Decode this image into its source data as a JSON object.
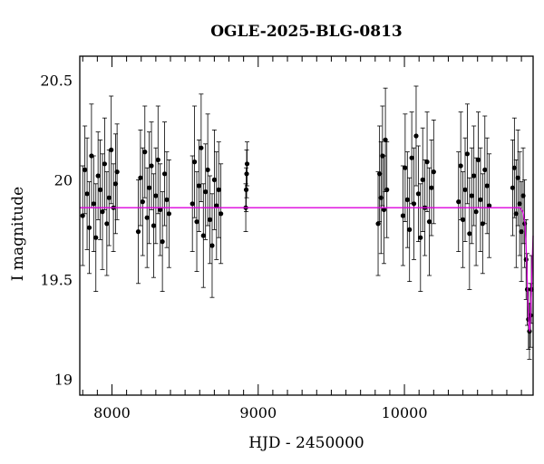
{
  "chart_data": {
    "type": "scatter",
    "title": "OGLE-2025-BLG-0813",
    "xlabel": "HJD - 2450000",
    "ylabel": "I magnitude",
    "xlim": [
      7780,
      10880
    ],
    "ylim": [
      20.62,
      18.92
    ],
    "y_inverted": true,
    "x_ticks": [
      8000,
      9000,
      10000
    ],
    "x_tick_labels": [
      "8000",
      "9000",
      "10000"
    ],
    "y_ticks": [
      19,
      19.5,
      20,
      20.5
    ],
    "y_tick_labels": [
      "19",
      "19.5",
      "20",
      "20.5"
    ],
    "grid": false,
    "colors": {
      "points": "#000000",
      "model": "#dd00dd"
    },
    "series": [
      {
        "type": "points-with-errorbars",
        "points": [
          {
            "x": 7800,
            "y": 19.82,
            "err": 0.25
          },
          {
            "x": 7815,
            "y": 20.05,
            "err": 0.22
          },
          {
            "x": 7830,
            "y": 19.93,
            "err": 0.28
          },
          {
            "x": 7845,
            "y": 19.76,
            "err": 0.23
          },
          {
            "x": 7860,
            "y": 20.12,
            "err": 0.26
          },
          {
            "x": 7875,
            "y": 19.88,
            "err": 0.24
          },
          {
            "x": 7890,
            "y": 19.71,
            "err": 0.27
          },
          {
            "x": 7905,
            "y": 20.02,
            "err": 0.22
          },
          {
            "x": 7920,
            "y": 19.95,
            "err": 0.25
          },
          {
            "x": 7935,
            "y": 19.84,
            "err": 0.29
          },
          {
            "x": 7950,
            "y": 20.08,
            "err": 0.23
          },
          {
            "x": 7965,
            "y": 19.78,
            "err": 0.26
          },
          {
            "x": 7980,
            "y": 19.91,
            "err": 0.24
          },
          {
            "x": 7995,
            "y": 20.15,
            "err": 0.27
          },
          {
            "x": 8010,
            "y": 19.86,
            "err": 0.22
          },
          {
            "x": 8025,
            "y": 19.98,
            "err": 0.25
          },
          {
            "x": 8035,
            "y": 20.04,
            "err": 0.24
          },
          {
            "x": 8180,
            "y": 19.74,
            "err": 0.26
          },
          {
            "x": 8195,
            "y": 20.01,
            "err": 0.24
          },
          {
            "x": 8210,
            "y": 19.89,
            "err": 0.27
          },
          {
            "x": 8225,
            "y": 20.14,
            "err": 0.23
          },
          {
            "x": 8240,
            "y": 19.81,
            "err": 0.25
          },
          {
            "x": 8255,
            "y": 19.96,
            "err": 0.28
          },
          {
            "x": 8270,
            "y": 20.07,
            "err": 0.22
          },
          {
            "x": 8285,
            "y": 19.77,
            "err": 0.26
          },
          {
            "x": 8300,
            "y": 19.92,
            "err": 0.24
          },
          {
            "x": 8315,
            "y": 20.1,
            "err": 0.27
          },
          {
            "x": 8330,
            "y": 19.85,
            "err": 0.23
          },
          {
            "x": 8345,
            "y": 19.69,
            "err": 0.25
          },
          {
            "x": 8360,
            "y": 20.03,
            "err": 0.26
          },
          {
            "x": 8375,
            "y": 19.9,
            "err": 0.24
          },
          {
            "x": 8390,
            "y": 19.83,
            "err": 0.27
          },
          {
            "x": 8550,
            "y": 19.88,
            "err": 0.24
          },
          {
            "x": 8565,
            "y": 20.09,
            "err": 0.28
          },
          {
            "x": 8580,
            "y": 19.79,
            "err": 0.25
          },
          {
            "x": 8595,
            "y": 19.97,
            "err": 0.23
          },
          {
            "x": 8610,
            "y": 20.16,
            "err": 0.27
          },
          {
            "x": 8625,
            "y": 19.72,
            "err": 0.26
          },
          {
            "x": 8640,
            "y": 19.94,
            "err": 0.24
          },
          {
            "x": 8655,
            "y": 20.05,
            "err": 0.28
          },
          {
            "x": 8670,
            "y": 19.8,
            "err": 0.22
          },
          {
            "x": 8685,
            "y": 19.67,
            "err": 0.26
          },
          {
            "x": 8700,
            "y": 20.0,
            "err": 0.25
          },
          {
            "x": 8715,
            "y": 19.87,
            "err": 0.27
          },
          {
            "x": 8730,
            "y": 19.95,
            "err": 0.24
          },
          {
            "x": 8745,
            "y": 19.83,
            "err": 0.25
          },
          {
            "x": 8915,
            "y": 19.86,
            "err": 0.12
          },
          {
            "x": 8918,
            "y": 19.95,
            "err": 0.11
          },
          {
            "x": 8921,
            "y": 20.03,
            "err": 0.12
          },
          {
            "x": 8924,
            "y": 20.08,
            "err": 0.11
          },
          {
            "x": 9820,
            "y": 19.78,
            "err": 0.26
          },
          {
            "x": 9830,
            "y": 20.03,
            "err": 0.24
          },
          {
            "x": 9840,
            "y": 19.91,
            "err": 0.28
          },
          {
            "x": 9850,
            "y": 20.12,
            "err": 0.25
          },
          {
            "x": 9860,
            "y": 19.85,
            "err": 0.27
          },
          {
            "x": 9870,
            "y": 20.2,
            "err": 0.26
          },
          {
            "x": 9880,
            "y": 19.95,
            "err": 0.24
          },
          {
            "x": 9990,
            "y": 19.82,
            "err": 0.25
          },
          {
            "x": 10005,
            "y": 20.06,
            "err": 0.27
          },
          {
            "x": 10020,
            "y": 19.9,
            "err": 0.24
          },
          {
            "x": 10035,
            "y": 19.75,
            "err": 0.26
          },
          {
            "x": 10050,
            "y": 20.11,
            "err": 0.23
          },
          {
            "x": 10065,
            "y": 19.88,
            "err": 0.28
          },
          {
            "x": 10080,
            "y": 20.22,
            "err": 0.25
          },
          {
            "x": 10095,
            "y": 19.93,
            "err": 0.24
          },
          {
            "x": 10110,
            "y": 19.71,
            "err": 0.27
          },
          {
            "x": 10125,
            "y": 20.0,
            "err": 0.26
          },
          {
            "x": 10140,
            "y": 19.86,
            "err": 0.24
          },
          {
            "x": 10155,
            "y": 20.09,
            "err": 0.25
          },
          {
            "x": 10170,
            "y": 19.79,
            "err": 0.27
          },
          {
            "x": 10185,
            "y": 19.96,
            "err": 0.24
          },
          {
            "x": 10200,
            "y": 20.04,
            "err": 0.26
          },
          {
            "x": 10370,
            "y": 19.89,
            "err": 0.25
          },
          {
            "x": 10385,
            "y": 20.07,
            "err": 0.27
          },
          {
            "x": 10400,
            "y": 19.8,
            "err": 0.24
          },
          {
            "x": 10415,
            "y": 19.95,
            "err": 0.26
          },
          {
            "x": 10430,
            "y": 20.13,
            "err": 0.25
          },
          {
            "x": 10445,
            "y": 19.73,
            "err": 0.28
          },
          {
            "x": 10460,
            "y": 19.92,
            "err": 0.24
          },
          {
            "x": 10475,
            "y": 20.02,
            "err": 0.25
          },
          {
            "x": 10490,
            "y": 19.84,
            "err": 0.27
          },
          {
            "x": 10505,
            "y": 20.1,
            "err": 0.24
          },
          {
            "x": 10520,
            "y": 19.9,
            "err": 0.26
          },
          {
            "x": 10535,
            "y": 19.78,
            "err": 0.25
          },
          {
            "x": 10550,
            "y": 20.05,
            "err": 0.27
          },
          {
            "x": 10565,
            "y": 19.97,
            "err": 0.24
          },
          {
            "x": 10580,
            "y": 19.87,
            "err": 0.26
          },
          {
            "x": 10740,
            "y": 19.96,
            "err": 0.24
          },
          {
            "x": 10752,
            "y": 20.06,
            "err": 0.25
          },
          {
            "x": 10764,
            "y": 19.83,
            "err": 0.27
          },
          {
            "x": 10776,
            "y": 20.01,
            "err": 0.24
          },
          {
            "x": 10788,
            "y": 19.88,
            "err": 0.26
          },
          {
            "x": 10800,
            "y": 19.74,
            "err": 0.25
          },
          {
            "x": 10812,
            "y": 19.92,
            "err": 0.24
          },
          {
            "x": 10822,
            "y": 19.78,
            "err": 0.22
          },
          {
            "x": 10832,
            "y": 19.6,
            "err": 0.2
          },
          {
            "x": 10840,
            "y": 19.45,
            "err": 0.18
          },
          {
            "x": 10848,
            "y": 19.3,
            "err": 0.15
          },
          {
            "x": 10855,
            "y": 19.24,
            "err": 0.14
          },
          {
            "x": 10862,
            "y": 19.32,
            "err": 0.16
          },
          {
            "x": 10868,
            "y": 19.45,
            "err": 0.17
          }
        ]
      },
      {
        "type": "model-curve",
        "points": [
          {
            "x": 7780,
            "y": 19.86
          },
          {
            "x": 10790,
            "y": 19.86
          },
          {
            "x": 10810,
            "y": 19.84
          },
          {
            "x": 10825,
            "y": 19.78
          },
          {
            "x": 10835,
            "y": 19.62
          },
          {
            "x": 10843,
            "y": 19.42
          },
          {
            "x": 10850,
            "y": 19.28
          },
          {
            "x": 10856,
            "y": 19.24
          },
          {
            "x": 10862,
            "y": 19.3
          },
          {
            "x": 10868,
            "y": 19.44
          },
          {
            "x": 10875,
            "y": 19.62
          },
          {
            "x": 10880,
            "y": 19.72
          }
        ]
      }
    ]
  }
}
